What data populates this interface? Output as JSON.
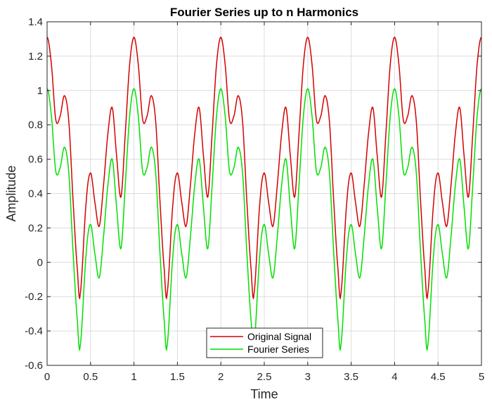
{
  "chart_data": {
    "type": "line",
    "title": "Fourier Series up to n Harmonics",
    "xlabel": "Time",
    "ylabel": "Amplitude",
    "xlim": [
      0,
      5
    ],
    "ylim": [
      -0.6,
      1.4
    ],
    "xticks": [
      0,
      0.5,
      1,
      1.5,
      2,
      2.5,
      3,
      3.5,
      4,
      4.5,
      5
    ],
    "xtick_labels": [
      "0",
      "0.5",
      "1",
      "1.5",
      "2",
      "2.5",
      "3",
      "3.5",
      "4",
      "4.5",
      "5"
    ],
    "yticks": [
      -0.6,
      -0.4,
      -0.2,
      0,
      0.2,
      0.4,
      0.6,
      0.8,
      1,
      1.2,
      1.4
    ],
    "ytick_labels": [
      "-0.6",
      "-0.4",
      "-0.2",
      "0",
      "0.2",
      "0.4",
      "0.6",
      "0.8",
      "1",
      "1.2",
      "1.4"
    ],
    "grid": true,
    "legend_position": "bottom-center",
    "period": 1,
    "series": [
      {
        "name": "Original Signal",
        "color": "#d40000",
        "x": [
          0,
          0.05,
          0.1,
          0.15,
          0.2,
          0.25,
          0.3,
          0.35,
          0.38,
          0.45,
          0.5,
          0.55,
          0.6,
          0.65,
          0.7,
          0.75,
          0.8,
          0.85,
          0.9,
          0.95,
          1.0
        ],
        "y": [
          1.31,
          1.15,
          0.83,
          0.85,
          0.97,
          0.82,
          0.35,
          -0.05,
          -0.19,
          0.35,
          0.52,
          0.35,
          0.21,
          0.45,
          0.75,
          0.9,
          0.62,
          0.38,
          0.75,
          1.15,
          1.31
        ]
      },
      {
        "name": "Fourier Series",
        "color": "#00e000",
        "x": [
          0,
          0.05,
          0.1,
          0.15,
          0.2,
          0.25,
          0.3,
          0.35,
          0.38,
          0.45,
          0.5,
          0.55,
          0.6,
          0.65,
          0.7,
          0.75,
          0.8,
          0.85,
          0.9,
          0.95,
          1.0
        ],
        "y": [
          1.01,
          0.85,
          0.53,
          0.55,
          0.67,
          0.52,
          0.05,
          -0.35,
          -0.49,
          0.05,
          0.22,
          0.05,
          -0.09,
          0.15,
          0.45,
          0.6,
          0.32,
          0.08,
          0.45,
          0.85,
          1.01
        ]
      }
    ]
  }
}
